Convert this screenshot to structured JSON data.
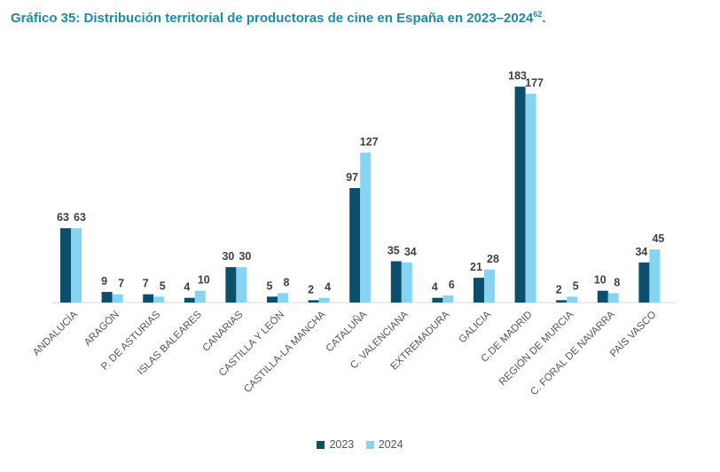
{
  "header": {
    "title": "Gráfico 35: Distribución territorial de productoras de cine en España en 2023–2024",
    "footnote": "62",
    "title_end": "."
  },
  "colors": {
    "series_2023": "#0b4f6c",
    "series_2024": "#87d4f2",
    "title": "#1f8aa8"
  },
  "chart_data": {
    "type": "bar",
    "title": "Gráfico 35: Distribución territorial de productoras de cine en España en 2023–2024",
    "xlabel": "",
    "ylabel": "",
    "ylim": [
      0,
      200
    ],
    "grid": false,
    "legend": "bottom",
    "categories": [
      "ANDALUCÍA",
      "ARAGÓN",
      "P. DE ASTURIAS",
      "ISLAS BALEARES",
      "CANARIAS",
      "CASTILLA Y LEÓN",
      "CASTILLA-LA MANCHA",
      "CATALUÑA",
      "C. VALENCIANA",
      "EXTREMADURA",
      "GALICIA",
      "C.DE MADRID",
      "REGIÓN DE MURCIA",
      "C. FORAL DE NAVARRA",
      "PAÍS VASCO"
    ],
    "series": [
      {
        "name": "2023",
        "color": "#0b4f6c",
        "values": [
          63,
          9,
          7,
          4,
          30,
          5,
          2,
          97,
          35,
          4,
          21,
          183,
          2,
          10,
          34
        ]
      },
      {
        "name": "2024",
        "color": "#87d4f2",
        "values": [
          63,
          7,
          5,
          10,
          30,
          8,
          4,
          127,
          34,
          6,
          28,
          177,
          5,
          8,
          45
        ]
      }
    ]
  }
}
